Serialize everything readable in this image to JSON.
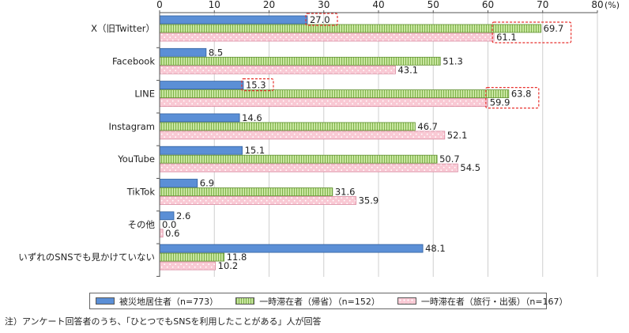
{
  "chart_data": {
    "type": "bar",
    "orientation": "horizontal",
    "categories": [
      "X（旧Twitter）",
      "Facebook",
      "LINE",
      "Instagram",
      "YouTube",
      "TikTok",
      "その他",
      "いずれのSNSでも見かけていない"
    ],
    "series": [
      {
        "name": "被災地居住者（n=773）",
        "values": [
          27.0,
          8.5,
          15.3,
          14.6,
          15.1,
          6.9,
          2.6,
          48.1
        ],
        "color": "#5b8fd6",
        "pattern": "solid"
      },
      {
        "name": "一時滞在者（帰省）（n=152）",
        "values": [
          69.7,
          51.3,
          63.8,
          46.7,
          50.7,
          31.6,
          0.0,
          11.8
        ],
        "color": "#c8e6a0",
        "pattern": "vertical-stripes"
      },
      {
        "name": "一時滞在者（旅行・出張）（n=167）",
        "values": [
          61.1,
          43.1,
          59.9,
          52.1,
          54.5,
          35.9,
          0.6,
          10.2
        ],
        "color": "#f9c9d4",
        "pattern": "dots"
      }
    ],
    "xlim": [
      0,
      80
    ],
    "xticks": [
      0,
      10,
      20,
      30,
      40,
      50,
      60,
      70,
      80
    ],
    "xunit": "(%)",
    "value_labels": [
      "27.0",
      "8.5",
      "15.3",
      "14.6",
      "15.1",
      "6.9",
      "2.6",
      "48.1",
      "69.7",
      "51.3",
      "63.8",
      "46.7",
      "50.7",
      "31.6",
      "0.0",
      "11.8",
      "61.1",
      "43.1",
      "59.9",
      "52.1",
      "54.5",
      "35.9",
      "0.6",
      "10.2"
    ],
    "highlighted": [
      {
        "category_index": 0,
        "series": [
          0
        ]
      },
      {
        "category_index": 0,
        "series": [
          1,
          2
        ]
      },
      {
        "category_index": 2,
        "series": [
          0
        ]
      },
      {
        "category_index": 2,
        "series": [
          1,
          2
        ]
      }
    ],
    "highlight_color": "#e8322e",
    "grid": true,
    "legend_position": "bottom"
  },
  "note": "注）アンケート回答者のうち、「ひとつでもSNSを利用したことがある」人が回答"
}
